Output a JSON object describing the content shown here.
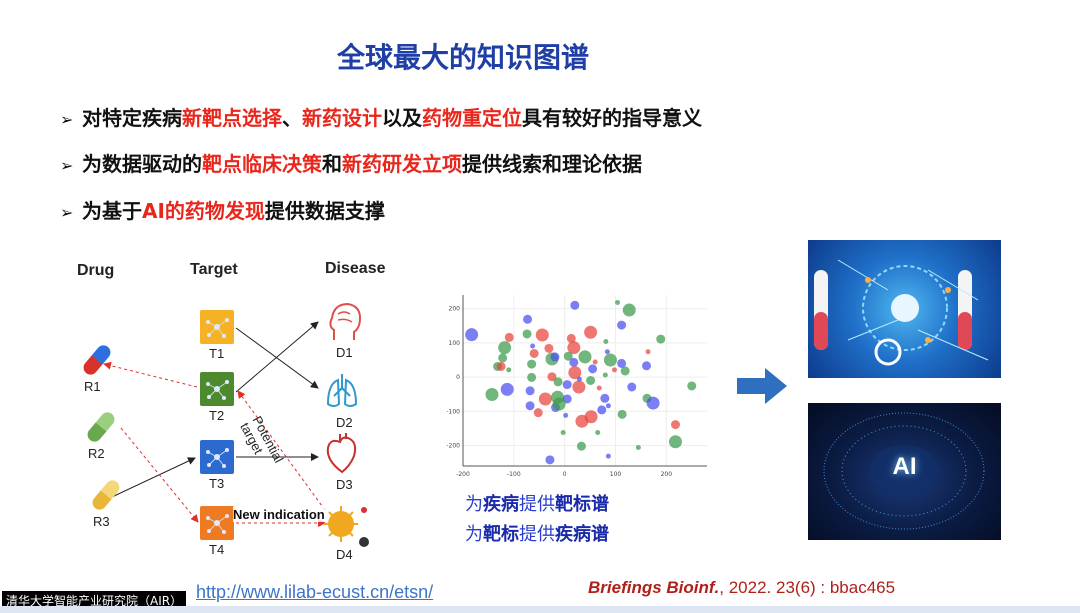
{
  "title": "全球最大的知识图谱",
  "bullets": [
    {
      "segments": [
        {
          "text": "对特定疾病",
          "highlight": false
        },
        {
          "text": "新靶点选择",
          "highlight": true
        },
        {
          "text": "、",
          "highlight": false
        },
        {
          "text": "新药设计",
          "highlight": true
        },
        {
          "text": "以及",
          "highlight": false
        },
        {
          "text": "药物重定位",
          "highlight": true
        },
        {
          "text": "具有较好的指导意义",
          "highlight": false
        }
      ]
    },
    {
      "segments": [
        {
          "text": "为数据驱动的",
          "highlight": false
        },
        {
          "text": "靶点临床决策",
          "highlight": true
        },
        {
          "text": "和",
          "highlight": false
        },
        {
          "text": "新药研发立项",
          "highlight": true
        },
        {
          "text": "提供线索和理论依据",
          "highlight": false
        }
      ]
    },
    {
      "segments": [
        {
          "text": "为基于",
          "highlight": false
        },
        {
          "text": "AI的药物发现",
          "highlight": true
        },
        {
          "text": "提供数据支撑",
          "highlight": false
        }
      ]
    }
  ],
  "bullet_marker": "➢",
  "diagram": {
    "headers": {
      "drug": "Drug",
      "target": "Target",
      "disease": "Disease"
    },
    "drugs": [
      {
        "label": "R1",
        "color": "#d8332a",
        "color2": "#2e6fe0"
      },
      {
        "label": "R2",
        "color": "#6aa84f",
        "color2": "#9bcf80"
      },
      {
        "label": "R3",
        "color": "#e8b73a",
        "color2": "#f5d77a"
      }
    ],
    "targets": [
      {
        "label": "T1",
        "color": "#f4b224"
      },
      {
        "label": "T2",
        "color": "#4d8a2e"
      },
      {
        "label": "T3",
        "color": "#2d6ad0"
      },
      {
        "label": "T4",
        "color": "#ee7a22"
      }
    ],
    "diseases": [
      {
        "label": "D1",
        "icon": "brain-head-icon",
        "color": "#e0504a"
      },
      {
        "label": "D2",
        "icon": "lungs-icon",
        "color": "#2f9ad0"
      },
      {
        "label": "D3",
        "icon": "heart-icon",
        "color": "#c83030"
      },
      {
        "label": "D4",
        "icon": "virus-icon",
        "color": "#f0a820"
      }
    ],
    "annotations": {
      "potential_target": "Potential target",
      "new_indication": "New indication"
    }
  },
  "chart_data": {
    "type": "scatter",
    "xlim": [
      -200,
      280
    ],
    "ylim": [
      -260,
      240
    ],
    "xticks": [
      "-200",
      "-100",
      "0",
      "100",
      "200"
    ],
    "yticks": [
      "200",
      "100",
      "0",
      "-100",
      "-200"
    ],
    "grid": true,
    "colors": {
      "red": "#e8443a",
      "blue": "#4a4ef0",
      "green": "#3a9a4a"
    },
    "points": [
      {
        "x": -183,
        "y": 124,
        "c": "blue",
        "s": 3
      },
      {
        "x": -73,
        "y": 169,
        "c": "blue",
        "s": 2
      },
      {
        "x": 20,
        "y": 210,
        "c": "blue",
        "s": 2
      },
      {
        "x": 127,
        "y": 196,
        "c": "green",
        "s": 3
      },
      {
        "x": 104,
        "y": 218,
        "c": "green",
        "s": 1
      },
      {
        "x": 112,
        "y": 152,
        "c": "blue",
        "s": 2
      },
      {
        "x": -109,
        "y": 116,
        "c": "red",
        "s": 2
      },
      {
        "x": -74,
        "y": 126,
        "c": "green",
        "s": 2
      },
      {
        "x": -44,
        "y": 123,
        "c": "red",
        "s": 3
      },
      {
        "x": 51,
        "y": 131,
        "c": "red",
        "s": 3
      },
      {
        "x": -118,
        "y": 86,
        "c": "green",
        "s": 3
      },
      {
        "x": 13,
        "y": 113,
        "c": "red",
        "s": 2
      },
      {
        "x": 18,
        "y": 86,
        "c": "red",
        "s": 3
      },
      {
        "x": 81,
        "y": 104,
        "c": "green",
        "s": 1
      },
      {
        "x": 189,
        "y": 111,
        "c": "green",
        "s": 2
      },
      {
        "x": -63,
        "y": 91,
        "c": "blue",
        "s": 1
      },
      {
        "x": -60,
        "y": 69,
        "c": "red",
        "s": 2
      },
      {
        "x": -31,
        "y": 84,
        "c": "red",
        "s": 2
      },
      {
        "x": -122,
        "y": 56,
        "c": "green",
        "s": 2
      },
      {
        "x": -25,
        "y": 53,
        "c": "green",
        "s": 3
      },
      {
        "x": -19,
        "y": 59,
        "c": "blue",
        "s": 2
      },
      {
        "x": 7,
        "y": 61,
        "c": "green",
        "s": 2
      },
      {
        "x": 40,
        "y": 59,
        "c": "green",
        "s": 3
      },
      {
        "x": 18,
        "y": 43,
        "c": "blue",
        "s": 2
      },
      {
        "x": 90,
        "y": 50,
        "c": "green",
        "s": 3
      },
      {
        "x": 84,
        "y": 74,
        "c": "blue",
        "s": 1
      },
      {
        "x": 112,
        "y": 40,
        "c": "blue",
        "s": 2
      },
      {
        "x": 164,
        "y": 74,
        "c": "red",
        "s": 1
      },
      {
        "x": 161,
        "y": 33,
        "c": "blue",
        "s": 2
      },
      {
        "x": -132,
        "y": 31,
        "c": "green",
        "s": 2
      },
      {
        "x": -110,
        "y": 21,
        "c": "green",
        "s": 1
      },
      {
        "x": -65,
        "y": 38,
        "c": "green",
        "s": 2
      },
      {
        "x": -125,
        "y": 31,
        "c": "red",
        "s": 2
      },
      {
        "x": 98,
        "y": 21,
        "c": "red",
        "s": 1
      },
      {
        "x": 119,
        "y": 18,
        "c": "green",
        "s": 2
      },
      {
        "x": 20,
        "y": 13,
        "c": "red",
        "s": 3
      },
      {
        "x": 55,
        "y": 24,
        "c": "blue",
        "s": 2
      },
      {
        "x": 60,
        "y": 44,
        "c": "red",
        "s": 1
      },
      {
        "x": -65,
        "y": -1,
        "c": "green",
        "s": 2
      },
      {
        "x": -25,
        "y": 1,
        "c": "red",
        "s": 2
      },
      {
        "x": -13,
        "y": -14,
        "c": "green",
        "s": 2
      },
      {
        "x": 5,
        "y": -22,
        "c": "blue",
        "s": 2
      },
      {
        "x": 28,
        "y": -29,
        "c": "red",
        "s": 3
      },
      {
        "x": 51,
        "y": -10,
        "c": "green",
        "s": 2
      },
      {
        "x": 29,
        "y": -6,
        "c": "blue",
        "s": 1
      },
      {
        "x": 68,
        "y": -32,
        "c": "red",
        "s": 1
      },
      {
        "x": 80,
        "y": 6,
        "c": "green",
        "s": 1
      },
      {
        "x": -113,
        "y": -36,
        "c": "blue",
        "s": 3
      },
      {
        "x": -143,
        "y": -51,
        "c": "green",
        "s": 3
      },
      {
        "x": -68,
        "y": -40,
        "c": "blue",
        "s": 2
      },
      {
        "x": -38,
        "y": -64,
        "c": "red",
        "s": 3
      },
      {
        "x": -14,
        "y": -59,
        "c": "green",
        "s": 3
      },
      {
        "x": 5,
        "y": -64,
        "c": "blue",
        "s": 2
      },
      {
        "x": 79,
        "y": -62,
        "c": "blue",
        "s": 2
      },
      {
        "x": 132,
        "y": -29,
        "c": "blue",
        "s": 2
      },
      {
        "x": 250,
        "y": -26,
        "c": "green",
        "s": 2
      },
      {
        "x": 162,
        "y": -62,
        "c": "green",
        "s": 2
      },
      {
        "x": 174,
        "y": -76,
        "c": "blue",
        "s": 3
      },
      {
        "x": -68,
        "y": -84,
        "c": "blue",
        "s": 2
      },
      {
        "x": -52,
        "y": -104,
        "c": "red",
        "s": 2
      },
      {
        "x": -18,
        "y": -89,
        "c": "blue",
        "s": 2
      },
      {
        "x": -11,
        "y": -79,
        "c": "green",
        "s": 3
      },
      {
        "x": 73,
        "y": -96,
        "c": "blue",
        "s": 2
      },
      {
        "x": 86,
        "y": -84,
        "c": "blue",
        "s": 1
      },
      {
        "x": 113,
        "y": -109,
        "c": "green",
        "s": 2
      },
      {
        "x": 34,
        "y": -129,
        "c": "red",
        "s": 3
      },
      {
        "x": 52,
        "y": -116,
        "c": "red",
        "s": 3
      },
      {
        "x": 2,
        "y": -112,
        "c": "blue",
        "s": 1
      },
      {
        "x": -3,
        "y": -162,
        "c": "green",
        "s": 1
      },
      {
        "x": 65,
        "y": -162,
        "c": "green",
        "s": 1
      },
      {
        "x": 218,
        "y": -139,
        "c": "red",
        "s": 2
      },
      {
        "x": 33,
        "y": -202,
        "c": "green",
        "s": 2
      },
      {
        "x": 218,
        "y": -189,
        "c": "green",
        "s": 3
      },
      {
        "x": 145,
        "y": -206,
        "c": "green",
        "s": 1
      },
      {
        "x": -29,
        "y": -242,
        "c": "blue",
        "s": 2
      },
      {
        "x": 86,
        "y": -231,
        "c": "blue",
        "s": 1
      }
    ]
  },
  "subtitles": [
    {
      "pre": "为",
      "b1": "疾病",
      "mid": "提供",
      "b2": "靶标谱"
    },
    {
      "pre": "为",
      "b1": "靶标",
      "mid": "提供",
      "b2": "疾病谱"
    }
  ],
  "arrow_color": "#2f6fc0",
  "ai_image_text": "AI",
  "citation": {
    "journal": "Briefings Bioinf.",
    "rest": ", 2022. 23(6) : bbac465"
  },
  "url": "http://www.lilab-ecust.cn/etsn/",
  "watermark": "清华大学智能产业研究院（AIR）"
}
